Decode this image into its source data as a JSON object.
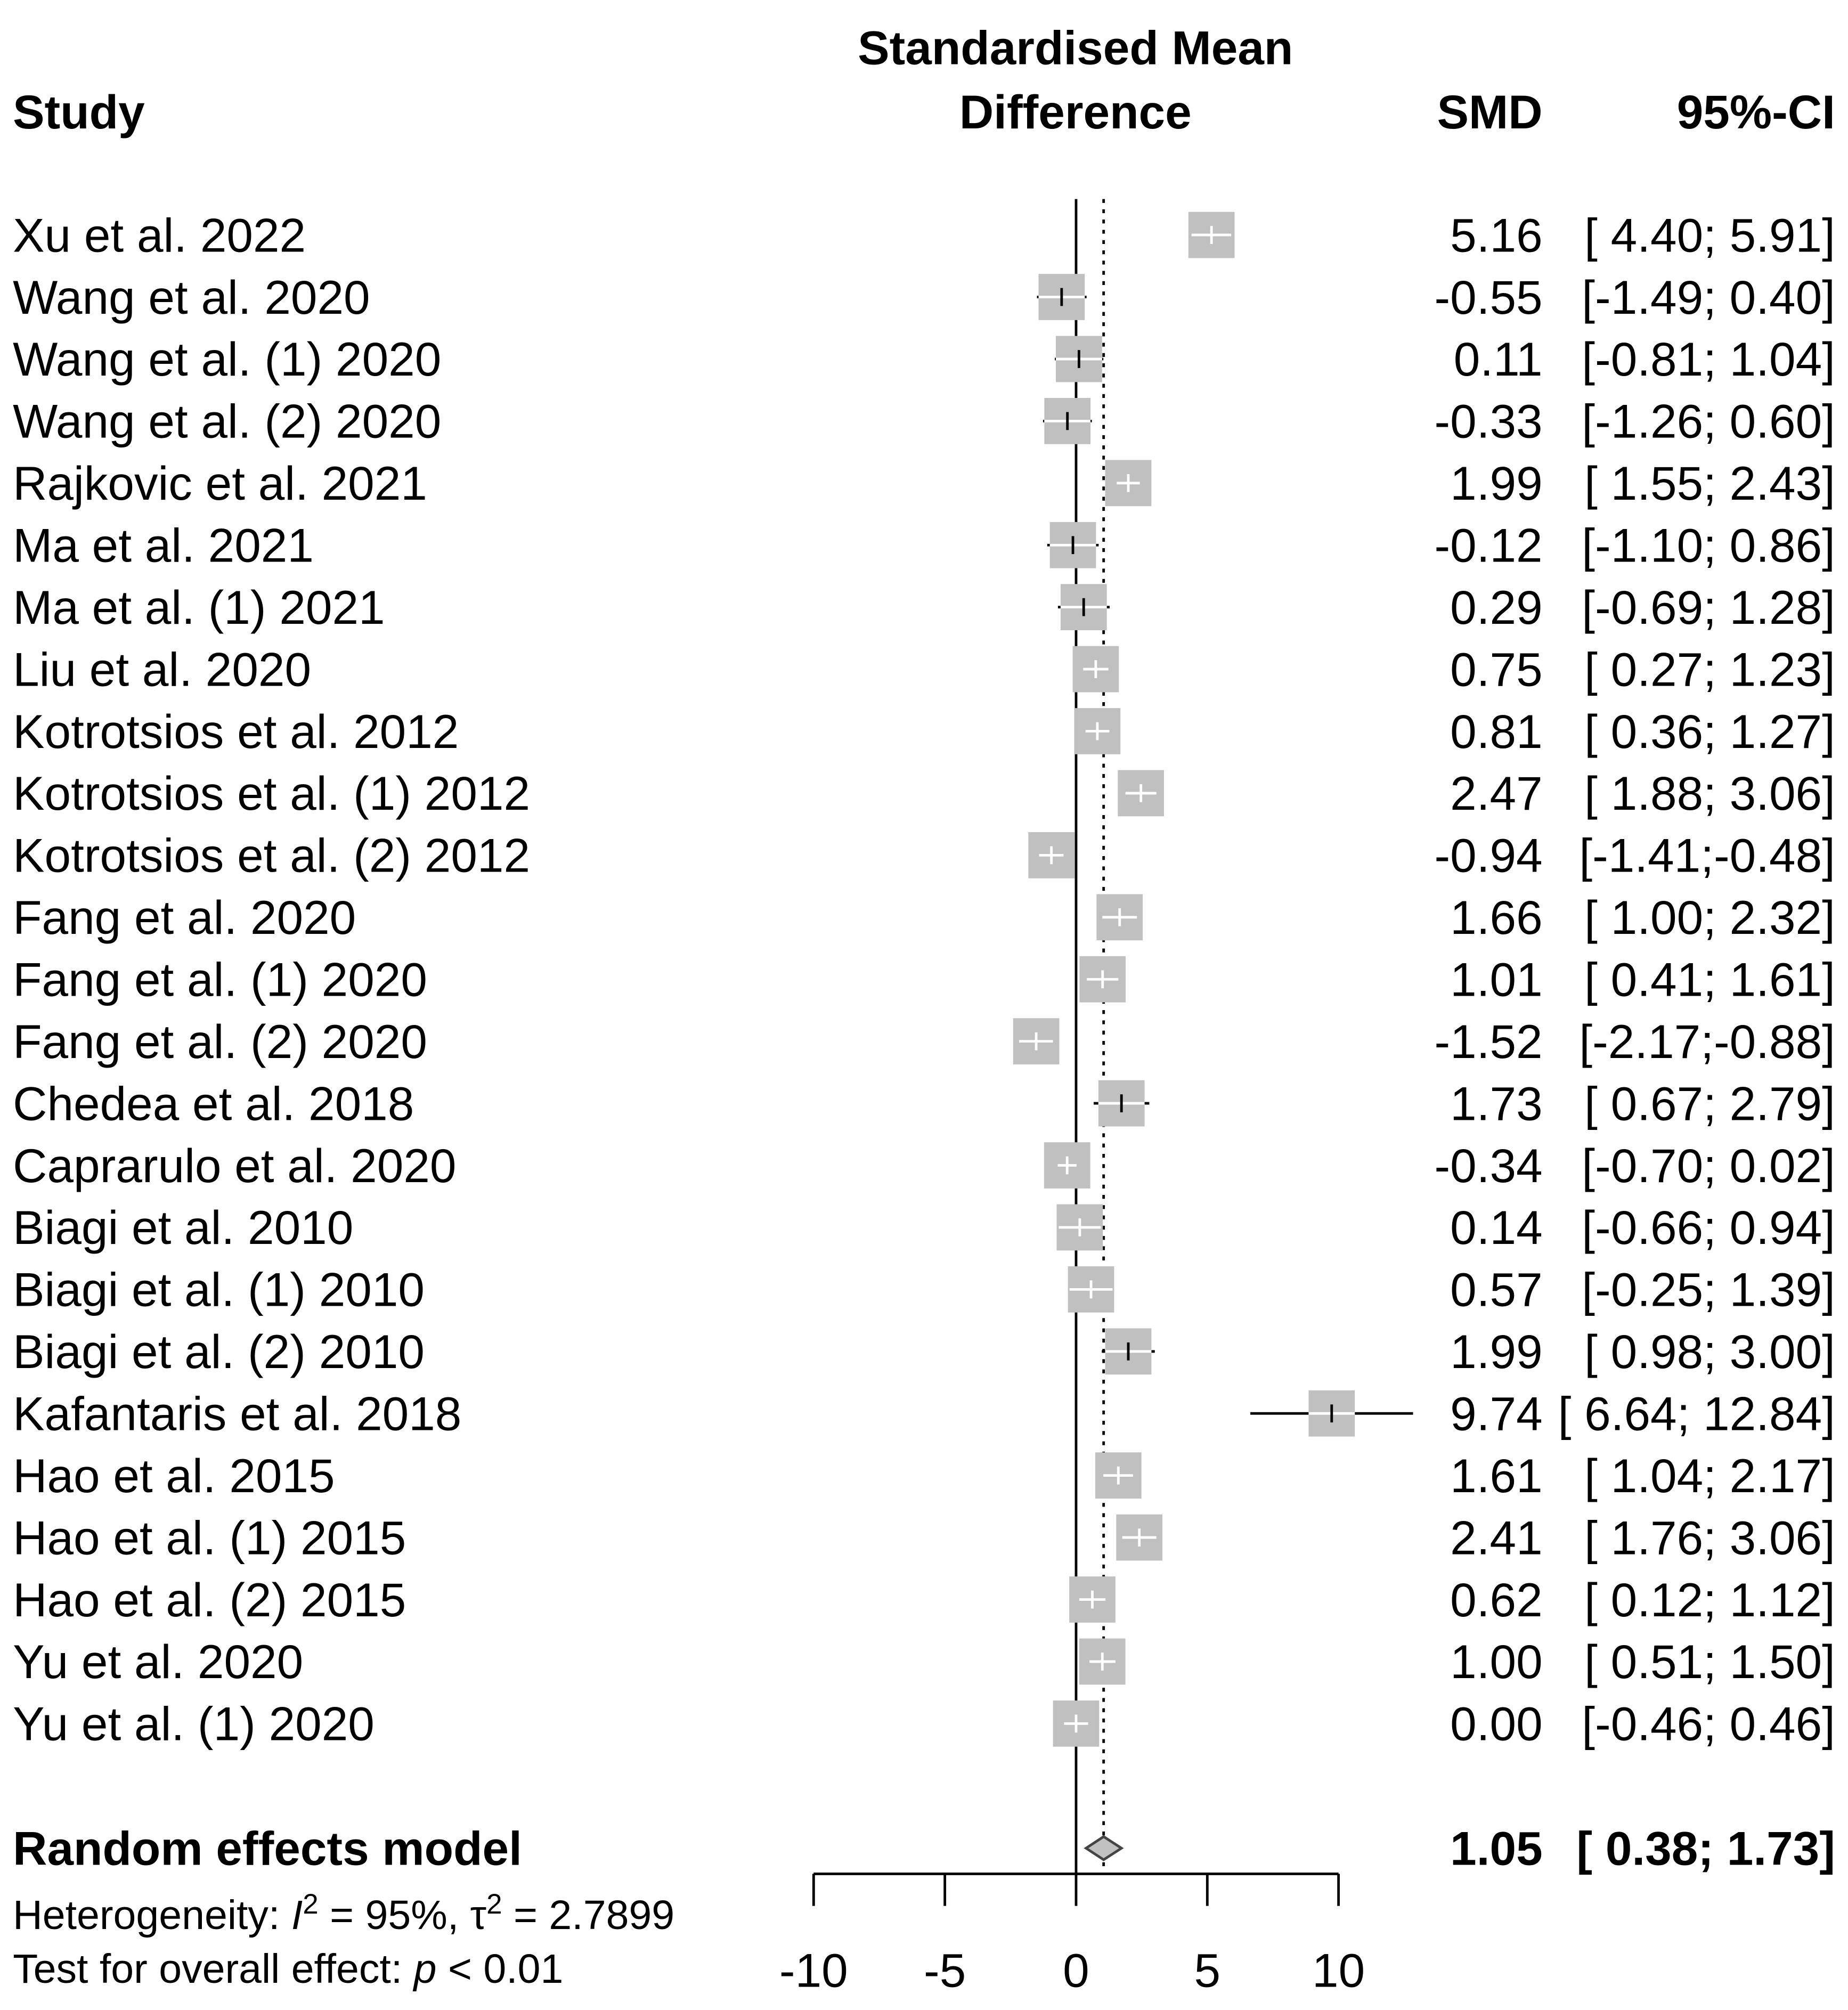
{
  "chart_data": {
    "type": "forest",
    "headers": {
      "study": "Study",
      "effect": [
        "Standardised Mean",
        "Difference"
      ],
      "smd": "SMD",
      "ci": "95%-CI"
    },
    "studies": [
      "Xu et al. 2022",
      "Wang et al. 2020",
      "Wang et al. (1) 2020",
      "Wang et al. (2) 2020",
      "Rajkovic et al. 2021",
      "Ma et al. 2021",
      "Ma et al. (1) 2021",
      "Liu et al. 2020",
      "Kotrotsios et al. 2012",
      "Kotrotsios et al. (1) 2012",
      "Kotrotsios et al. (2) 2012",
      "Fang et al. 2020",
      "Fang et al. (1) 2020",
      "Fang et al. (2) 2020",
      "Chedea et al. 2018",
      "Caprarulo et al. 2020",
      "Biagi et al. 2010",
      "Biagi et al. (1) 2010",
      "Biagi et al. (2) 2010",
      "Kafantaris et al. 2018",
      "Hao et al. 2015",
      "Hao et al. (1) 2015",
      "Hao et al. (2) 2015",
      "Yu et al. 2020",
      "Yu et al. (1) 2020"
    ],
    "values": [
      5.16,
      -0.55,
      0.11,
      -0.33,
      1.99,
      -0.12,
      0.29,
      0.75,
      0.81,
      2.47,
      -0.94,
      1.66,
      1.01,
      -1.52,
      1.73,
      -0.34,
      0.14,
      0.57,
      1.99,
      9.74,
      1.61,
      2.41,
      0.62,
      1.0,
      0.0
    ],
    "value_labels": [
      "5.16",
      "-0.55",
      "0.11",
      "-0.33",
      "1.99",
      "-0.12",
      "0.29",
      "0.75",
      "0.81",
      "2.47",
      "-0.94",
      "1.66",
      "1.01",
      "-1.52",
      "1.73",
      "-0.34",
      "0.14",
      "0.57",
      "1.99",
      "9.74",
      "1.61",
      "2.41",
      "0.62",
      "1.00",
      "0.00"
    ],
    "lower": [
      4.4,
      -1.49,
      -0.81,
      -1.26,
      1.55,
      -1.1,
      -0.69,
      0.27,
      0.36,
      1.88,
      -1.41,
      1.0,
      0.41,
      -2.17,
      0.67,
      -0.7,
      -0.66,
      -0.25,
      0.98,
      6.64,
      1.04,
      1.76,
      0.12,
      0.51,
      -0.46
    ],
    "upper": [
      5.91,
      0.4,
      1.04,
      0.6,
      2.43,
      0.86,
      1.28,
      1.23,
      1.27,
      3.06,
      -0.48,
      2.32,
      1.61,
      -0.88,
      2.79,
      0.02,
      0.94,
      1.39,
      3.0,
      12.84,
      2.17,
      3.06,
      1.12,
      1.5,
      0.46
    ],
    "ci_labels": [
      "[ 4.40; 5.91]",
      "[-1.49; 0.40]",
      "[-0.81; 1.04]",
      "[-1.26; 0.60]",
      "[ 1.55; 2.43]",
      "[-1.10; 0.86]",
      "[-0.69; 1.28]",
      "[ 0.27; 1.23]",
      "[ 0.36; 1.27]",
      "[ 1.88; 3.06]",
      "[-1.41;-0.48]",
      "[ 1.00; 2.32]",
      "[ 0.41; 1.61]",
      "[-2.17;-0.88]",
      "[ 0.67; 2.79]",
      "[-0.70; 0.02]",
      "[-0.66; 0.94]",
      "[-0.25; 1.39]",
      "[ 0.98; 3.00]",
      "[ 6.64; 12.84]",
      "[ 1.04; 2.17]",
      "[ 1.76; 3.06]",
      "[ 0.12; 1.12]",
      "[ 0.51; 1.50]",
      "[-0.46; 0.46]"
    ],
    "pooled": {
      "name": "Random effects model",
      "value": 1.05,
      "lower": 0.38,
      "upper": 1.73,
      "ci_label": "[ 0.38; 1.73]"
    },
    "heterogeneity": [
      "Heterogeneity: ",
      "I",
      "2",
      " = 95%, ",
      "τ",
      "2",
      " = 2.7899"
    ],
    "overall_test": [
      "Test for overall effect: ",
      "p",
      " < 0.01"
    ],
    "xlim": [
      -10,
      10
    ],
    "xticks": [
      -10,
      -5,
      0,
      5,
      10
    ],
    "box_color": "#c0c0c0"
  }
}
